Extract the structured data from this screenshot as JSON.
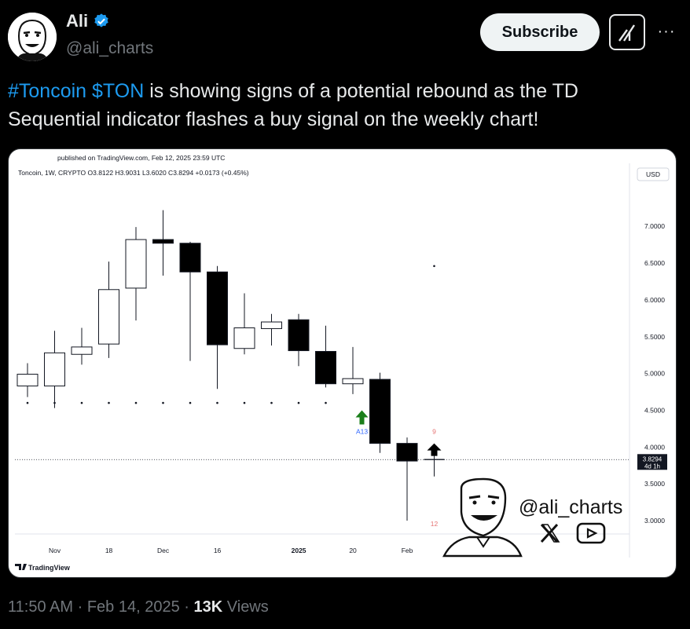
{
  "author": {
    "display_name": "Ali",
    "handle": "@ali_charts"
  },
  "header": {
    "subscribe_label": "Subscribe",
    "more_label": "···"
  },
  "tweet": {
    "hashtag": "#Toncoin",
    "cashtag": "$TON",
    "text_line1_rest": "is showing signs of a potential rebound as the TD",
    "text_line2": "Sequential indicator flashes a buy signal on the weekly chart!"
  },
  "meta": {
    "time": "11:50 AM",
    "sep1": "·",
    "date": "Feb 14, 2025",
    "sep2": "·",
    "views_count": "13K",
    "views_label": "Views"
  },
  "chart_data": {
    "type": "candlestick",
    "published": "published on TradingView.com, Feb 12, 2025 23:59 UTC",
    "symbol_line": "Toncoin, 1W, CRYPTO  O3.8122  H3.9031  L3.6020  C3.8294  +0.0173 (+0.45%)",
    "currency": "USD",
    "ylim": [
      2.75,
      7.4
    ],
    "y_ticks": [
      "7.0000",
      "6.5000",
      "6.0000",
      "5.5000",
      "5.0000",
      "4.5000",
      "4.0000",
      "3.5000",
      "3.0000"
    ],
    "y_tick_values": [
      7.0,
      6.5,
      6.0,
      5.5,
      5.0,
      4.5,
      4.0,
      3.5,
      3.0
    ],
    "x_ticks": [
      "Nov",
      "18",
      "Dec",
      "16",
      "2025",
      "20",
      "Feb"
    ],
    "x_tick_candle_index": [
      1.35,
      3.35,
      5.35,
      7.35,
      10.35,
      12.35,
      14.35
    ],
    "current_price": "3.8294",
    "current_price_value": 3.8294,
    "countdown": "4d 1h",
    "candles": [
      {
        "o": 4.83,
        "h": 5.14,
        "l": 4.68,
        "c": 4.99
      },
      {
        "o": 4.83,
        "h": 5.58,
        "l": 4.53,
        "c": 5.28
      },
      {
        "o": 5.26,
        "h": 5.62,
        "l": 5.12,
        "c": 5.36
      },
      {
        "o": 5.4,
        "h": 6.52,
        "l": 5.21,
        "c": 6.14
      },
      {
        "o": 6.16,
        "h": 6.99,
        "l": 5.72,
        "c": 6.82
      },
      {
        "o": 6.82,
        "h": 7.22,
        "l": 6.33,
        "c": 6.77
      },
      {
        "o": 6.77,
        "h": 6.79,
        "l": 5.17,
        "c": 6.38
      },
      {
        "o": 6.38,
        "h": 6.46,
        "l": 4.79,
        "c": 5.39
      },
      {
        "o": 5.34,
        "h": 6.09,
        "l": 5.26,
        "c": 5.62
      },
      {
        "o": 5.61,
        "h": 5.81,
        "l": 5.38,
        "c": 5.7
      },
      {
        "o": 5.73,
        "h": 5.81,
        "l": 5.1,
        "c": 5.31
      },
      {
        "o": 5.3,
        "h": 5.65,
        "l": 4.81,
        "c": 4.86
      },
      {
        "o": 4.86,
        "h": 5.36,
        "l": 4.72,
        "c": 4.93
      },
      {
        "o": 4.92,
        "h": 5.01,
        "l": 3.92,
        "c": 4.05
      },
      {
        "o": 4.05,
        "h": 4.13,
        "l": 3.0,
        "c": 3.81
      },
      {
        "o": 3.81,
        "h": 3.9,
        "l": 3.6,
        "c": 3.83
      }
    ],
    "dots": [
      4.6,
      4.6,
      4.6,
      4.6,
      4.6,
      4.6,
      4.6,
      4.6,
      4.6,
      4.6,
      4.6,
      4.6,
      null,
      null,
      null,
      6.46
    ],
    "buy_arrow": {
      "label": "A13",
      "candle": 11
    },
    "buy_arrow2": {
      "label": "9",
      "candle": 15
    },
    "count_label": {
      "label": "12",
      "candle": 15
    },
    "watermark_handle": "@ali_charts",
    "tradingview_logo": "TradingView"
  }
}
